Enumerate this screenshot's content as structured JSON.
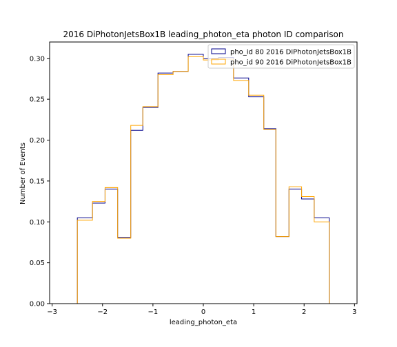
{
  "chart_data": {
    "type": "step-histogram",
    "title": "2016 DiPhotonJetsBox1B leading_photon_eta photon ID comparison",
    "xlabel": "leading_photon_eta",
    "ylabel": "Number of Events",
    "xlim": [
      -3.05,
      3.05
    ],
    "ylim": [
      0.0,
      0.32
    ],
    "xticks": [
      -3,
      -2,
      -1,
      0,
      1,
      2,
      3
    ],
    "xtick_labels": [
      "−3",
      "−2",
      "−1",
      "0",
      "1",
      "2",
      "3"
    ],
    "yticks": [
      0.0,
      0.05,
      0.1,
      0.15,
      0.2,
      0.25,
      0.3
    ],
    "ytick_labels": [
      "0.00",
      "0.05",
      "0.10",
      "0.15",
      "0.20",
      "0.25",
      "0.30"
    ],
    "bin_edges": [
      -2.5,
      -2.2,
      -1.95,
      -1.7,
      -1.44,
      -1.2,
      -0.9,
      -0.6,
      -0.3,
      0.0,
      0.3,
      0.6,
      0.9,
      1.2,
      1.44,
      1.7,
      1.95,
      2.2,
      2.5
    ],
    "series": [
      {
        "name": "pho_id 80 2016 DiPhotonJetsBox1B",
        "color": "#00008b",
        "values": [
          0.105,
          0.123,
          0.14,
          0.081,
          0.212,
          0.24,
          0.282,
          0.284,
          0.305,
          0.3,
          0.301,
          0.276,
          0.253,
          0.214,
          0.082,
          0.14,
          0.128,
          0.105
        ]
      },
      {
        "name": "pho_id 90 2016 DiPhotonJetsBox1B",
        "color": "#ffa500",
        "values": [
          0.102,
          0.125,
          0.142,
          0.08,
          0.218,
          0.241,
          0.28,
          0.284,
          0.302,
          0.298,
          0.299,
          0.273,
          0.255,
          0.213,
          0.082,
          0.143,
          0.131,
          0.1
        ]
      }
    ],
    "legend_position": "top-right",
    "grid": false
  }
}
